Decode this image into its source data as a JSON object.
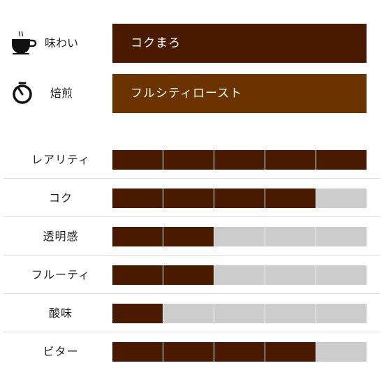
{
  "colors": {
    "taste_bar": "#4a1a00",
    "roast_bar": "#6b3300",
    "segment_filled": "#4a1a00",
    "segment_empty": "#cccccc"
  },
  "info": [
    {
      "key": "taste",
      "icon": "coffee-cup-icon",
      "label": "味わい",
      "value": "コクまろ"
    },
    {
      "key": "roast",
      "icon": "timer-icon",
      "label": "焙煎",
      "value": "フルシティロースト"
    }
  ],
  "ratings": {
    "max": 5,
    "items": [
      {
        "label": "レアリティ",
        "level": 5
      },
      {
        "label": "コク",
        "level": 4
      },
      {
        "label": "透明感",
        "level": 2
      },
      {
        "label": "フルーティ",
        "level": 2
      },
      {
        "label": "酸味",
        "level": 1
      },
      {
        "label": "ビター",
        "level": 4
      }
    ]
  }
}
